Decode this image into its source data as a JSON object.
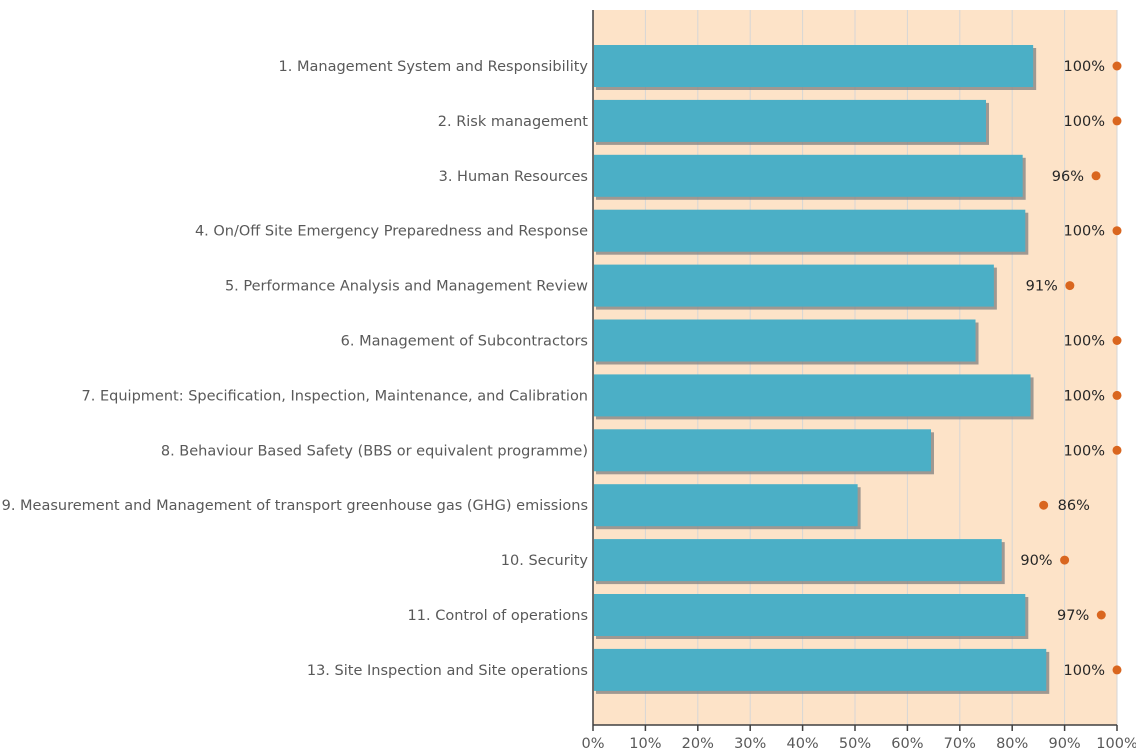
{
  "chart_data": {
    "type": "bar",
    "orientation": "horizontal",
    "categories": [
      "1. Management System and Responsibility",
      "2. Risk management",
      "3. Human Resources",
      "4. On/Off Site Emergency Preparedness and Response",
      "5. Performance Analysis and Management Review",
      "6. Management of Subcontractors",
      "7. Equipment: Specification, Inspection, Maintenance, and Calibration",
      "8. Behaviour Based Safety (BBS or equivalent programme)",
      "9. Measurement and Management of transport greenhouse gas (GHG) emissions",
      "10. Security",
      "11. Control of operations",
      "13. Site Inspection and Site operations"
    ],
    "series": [
      {
        "type": "bar",
        "values": [
          84,
          75,
          82,
          82.5,
          76.5,
          73,
          83.5,
          64.5,
          50.5,
          78,
          82.5,
          86.5
        ]
      },
      {
        "type": "point",
        "values": [
          100,
          100,
          96,
          100,
          91,
          100,
          100,
          100,
          86,
          90,
          97,
          100
        ],
        "labels": [
          "100%",
          "100%",
          "96%",
          "100%",
          "91%",
          "100%",
          "100%",
          "100%",
          "86%",
          "90%",
          "97%",
          "100%"
        ]
      }
    ],
    "xlim": [
      0,
      100
    ],
    "xticks": [
      "0%",
      "10%",
      "20%",
      "30%",
      "40%",
      "50%",
      "60%",
      "70%",
      "80%",
      "90%",
      "100%"
    ],
    "grid": true,
    "title": "",
    "xlabel": "",
    "ylabel": "",
    "colors": {
      "plot_background": "#FDE3C8",
      "bar": "#4BAFC6",
      "bar_shadow": "#7f7f7f",
      "marker": "#D9661F",
      "grid": "#d6d6d6",
      "axis": "#404040"
    }
  }
}
